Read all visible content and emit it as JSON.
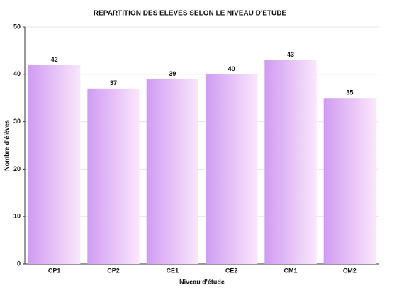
{
  "chart_data": {
    "type": "bar",
    "title": "REPARTITION DES ELEVES SELON LE NIVEAU D'ETUDE",
    "x_label": "Niveau d'étude",
    "y_label": "Nombre d'élèves",
    "categories": [
      "CP1",
      "CP2",
      "CE1",
      "CE2",
      "CM1",
      "CM2"
    ],
    "values": [
      42,
      37,
      39,
      40,
      43,
      35
    ],
    "color": "#cf9cf2",
    "ylim": [
      0,
      50
    ],
    "yticks": [
      0,
      10,
      20,
      30,
      40,
      50
    ],
    "grid": true
  }
}
